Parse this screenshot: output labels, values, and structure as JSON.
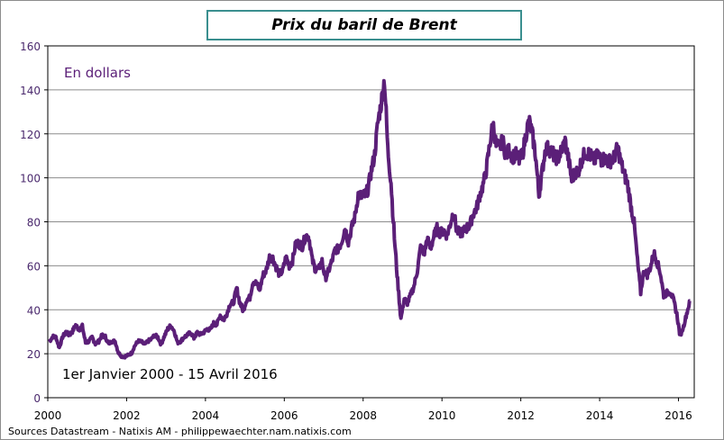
{
  "chart_data": {
    "type": "line",
    "title": "Prix du baril de Brent",
    "unit_label": "En dollars",
    "period_label": "1er Janvier 2000 - 15 Avril 2016",
    "source": "Sources Datastream - Natixis AM - philippewaechter.nam.natixis.com",
    "xlim": [
      2000,
      2016.4
    ],
    "ylim": [
      0,
      160
    ],
    "x_ticks": [
      "2000",
      "2002",
      "2004",
      "2006",
      "2008",
      "2010",
      "2012",
      "2014",
      "2016"
    ],
    "y_ticks": [
      "0",
      "20",
      "40",
      "60",
      "80",
      "100",
      "120",
      "140",
      "160"
    ],
    "grid": "horizontal",
    "line_color": "#5b1f78",
    "title_border_color": "#3a8f8f",
    "monthly_values": {
      "2000": [
        25.5,
        27.8,
        27.5,
        22.8,
        27.6,
        29.8,
        28.5,
        30.1,
        33.0,
        30.9,
        32.5,
        25.0
      ],
      "2001": [
        25.6,
        27.5,
        24.5,
        25.6,
        28.4,
        27.7,
        24.5,
        25.7,
        25.6,
        20.5,
        18.8,
        18.7
      ],
      "2002": [
        19.4,
        20.3,
        23.7,
        25.7,
        25.4,
        24.1,
        25.7,
        26.6,
        28.4,
        27.5,
        24.3,
        28.0
      ],
      "2003": [
        31.2,
        32.8,
        30.3,
        25.0,
        25.8,
        27.6,
        28.4,
        29.8,
        27.1,
        29.6,
        28.8,
        29.8
      ],
      "2004": [
        31.2,
        30.9,
        33.8,
        33.4,
        37.6,
        35.2,
        38.2,
        42.7,
        43.2,
        49.8,
        43.1,
        39.6
      ],
      "2005": [
        44.5,
        45.5,
        53.1,
        51.9,
        49.0,
        55.6,
        57.9,
        63.9,
        63.5,
        59.5,
        56.2,
        57.6
      ],
      "2006": [
        63.9,
        60.0,
        62.3,
        70.4,
        70.0,
        68.9,
        73.7,
        73.2,
        62.5,
        58.4,
        58.6,
        62.1
      ],
      "2007": [
        54.3,
        57.8,
        62.1,
        67.4,
        67.5,
        71.3,
        77.2,
        70.8,
        77.1,
        82.3,
        92.5,
        91.5
      ],
      "2008": [
        92.0,
        94.8,
        103.3,
        110.4,
        125.4,
        133.9,
        145.0,
        113.0,
        98.1,
        72.8,
        53.2,
        36.0
      ],
      "2009": [
        44.9,
        43.1,
        46.8,
        50.8,
        57.9,
        68.6,
        64.9,
        72.5,
        67.7,
        73.2,
        77.0,
        74.7
      ],
      "2010": [
        76.2,
        73.8,
        78.8,
        84.8,
        75.9,
        74.8,
        75.6,
        77.1,
        78.4,
        83.5,
        86.1,
        92.0
      ],
      "2011": [
        96.5,
        103.7,
        114.6,
        125.0,
        114.5,
        113.9,
        116.7,
        110.2,
        112.8,
        109.6,
        110.5,
        107.9
      ],
      "2012": [
        110.7,
        119.3,
        126.0,
        119.8,
        110.3,
        92.0,
        102.6,
        113.4,
        113.4,
        111.7,
        109.1,
        109.5
      ],
      "2013": [
        112.9,
        116.5,
        108.5,
        99.0,
        102.6,
        102.9,
        107.9,
        111.3,
        111.2,
        109.5,
        107.8,
        110.8
      ],
      "2014": [
        108.1,
        108.9,
        107.5,
        107.8,
        109.5,
        114.0,
        106.8,
        101.6,
        97.1,
        87.4,
        79.4,
        62.3
      ],
      "2015": [
        47.8,
        58.1,
        55.9,
        59.5,
        66.0,
        61.7,
        56.6,
        46.5,
        47.6,
        48.4,
        44.3,
        38.0
      ],
      "2016": [
        28.0,
        32.2,
        38.2,
        44.0
      ]
    }
  }
}
